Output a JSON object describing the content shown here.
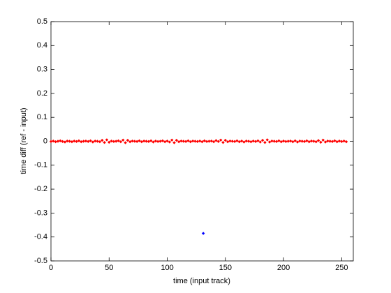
{
  "chart_data": {
    "type": "scatter",
    "xlabel": "time (input track)",
    "ylabel": "time diff (ref - input)",
    "xlim": [
      0,
      260
    ],
    "ylim": [
      -0.5,
      0.5
    ],
    "xticks": [
      0,
      50,
      100,
      150,
      200,
      250
    ],
    "yticks": [
      -0.5,
      -0.4,
      -0.3,
      -0.2,
      -0.1,
      0,
      0.1,
      0.2,
      0.3,
      0.4,
      0.5
    ],
    "series": [
      {
        "color": "#ff0000",
        "x": [
          0,
          2,
          4,
          6,
          8,
          10,
          12,
          14,
          16,
          18,
          20,
          22,
          24,
          26,
          28,
          30,
          32,
          34,
          36,
          38,
          40,
          42,
          44,
          46,
          48,
          50,
          52,
          54,
          56,
          58,
          60,
          62,
          64,
          66,
          68,
          70,
          72,
          74,
          76,
          78,
          80,
          82,
          84,
          86,
          88,
          90,
          92,
          94,
          96,
          98,
          100,
          102,
          104,
          106,
          108,
          110,
          112,
          114,
          116,
          118,
          120,
          122,
          124,
          126,
          128,
          130,
          132,
          134,
          136,
          138,
          140,
          142,
          144,
          146,
          148,
          150,
          152,
          154,
          156,
          158,
          160,
          162,
          164,
          166,
          168,
          170,
          172,
          174,
          176,
          178,
          180,
          182,
          184,
          186,
          188,
          190,
          192,
          194,
          196,
          198,
          200,
          202,
          204,
          206,
          208,
          210,
          212,
          214,
          216,
          218,
          220,
          222,
          224,
          226,
          228,
          230,
          232,
          234,
          236,
          238,
          240,
          242,
          244,
          246,
          248,
          250,
          252,
          254
        ],
        "values": [
          -0.001,
          0.001,
          -0.002,
          0,
          0.002,
          -0.001,
          -0.003,
          0.001,
          0,
          -0.002,
          0.001,
          -0.001,
          0.002,
          -0.002,
          0,
          0.001,
          -0.001,
          0.002,
          -0.003,
          0.001,
          0,
          -0.002,
          0.004,
          -0.005,
          0.006,
          -0.004,
          0.001,
          -0.001,
          0,
          0.002,
          -0.002,
          0.005,
          -0.006,
          0.004,
          -0.002,
          0.001,
          0,
          -0.001,
          0.002,
          -0.002,
          0.001,
          0,
          -0.001,
          0.002,
          -0.003,
          0.001,
          -0.001,
          0,
          0.002,
          -0.002,
          0.001,
          -0.003,
          0.005,
          -0.006,
          0.004,
          -0.002,
          0.001,
          0,
          -0.001,
          0.002,
          -0.002,
          0.001,
          0,
          -0.001,
          0.001,
          -0.002,
          0.002,
          -0.001,
          0,
          0.001,
          -0.002,
          0.003,
          -0.001,
          0.005,
          -0.005,
          0.004,
          -0.002,
          0.001,
          0,
          -0.001,
          0.002,
          -0.002,
          0.001,
          -0.003,
          0.001,
          0,
          -0.002,
          0.001,
          -0.001,
          0.002,
          -0.003,
          0.004,
          -0.005,
          0.006,
          -0.003,
          0.001,
          0,
          -0.001,
          0.002,
          -0.002,
          0.001,
          -0.001,
          0,
          0.001,
          -0.002,
          0.002,
          -0.003,
          0.001,
          0,
          -0.001,
          0.002,
          -0.002,
          0.001,
          0,
          -0.002,
          0.003,
          -0.004,
          0.005,
          -0.003,
          0.001,
          0,
          -0.001,
          0.002,
          -0.002,
          0.001,
          -0.001,
          0.001,
          -0.002
        ]
      },
      {
        "color": "#0000ff",
        "x": [
          131
        ],
        "values": [
          -0.385
        ]
      }
    ]
  }
}
